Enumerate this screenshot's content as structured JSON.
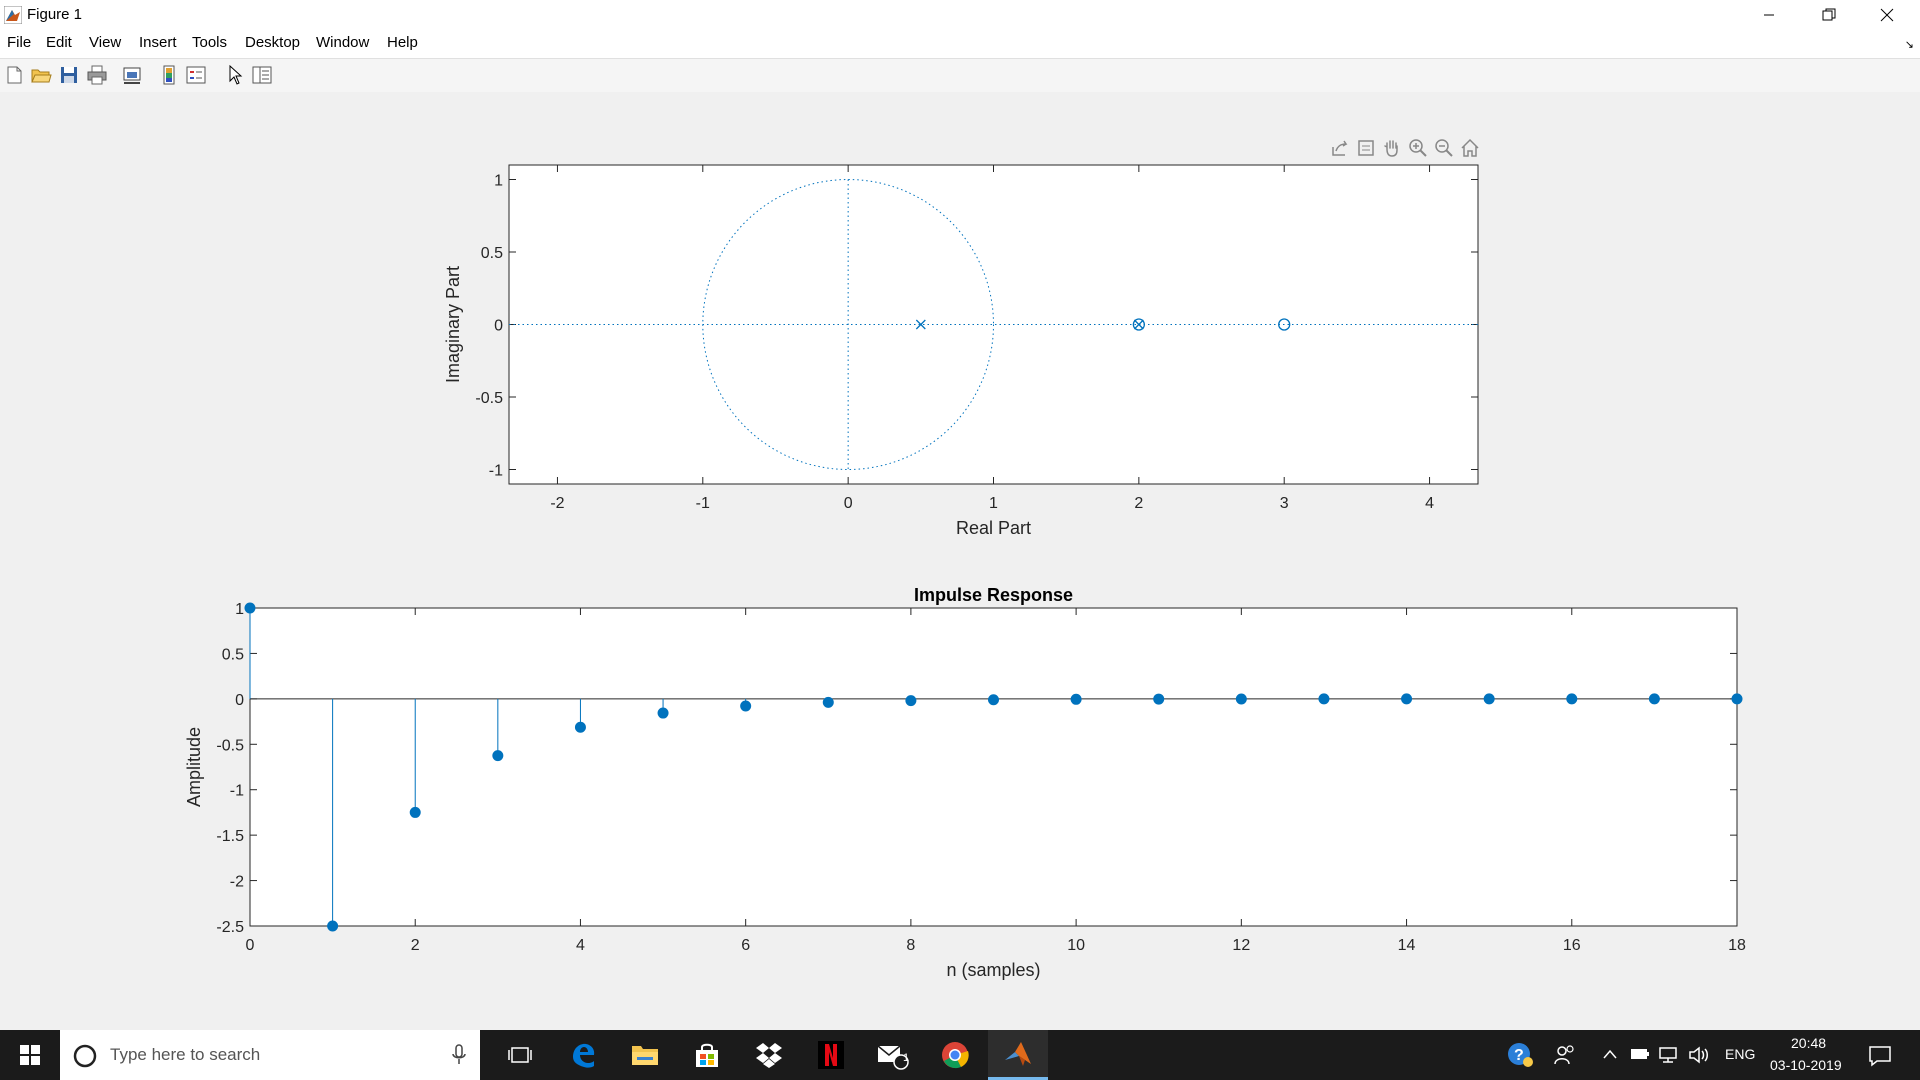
{
  "window": {
    "title": "Figure 1",
    "icon": "matlab-icon",
    "controls": [
      "minimize-icon",
      "restore-icon",
      "close-icon"
    ]
  },
  "menu": {
    "file": "File",
    "edit": "Edit",
    "view": "View",
    "insert": "Insert",
    "tools": "Tools",
    "desktop": "Desktop",
    "window": "Window",
    "help": "Help"
  },
  "toolbar": {
    "buttons": [
      "new-figure-icon",
      "open-file-icon",
      "save-icon",
      "print-icon",
      "link-plot-icon",
      "colorbar-icon",
      "legend-icon",
      "edit-plot-icon",
      "property-inspector-icon"
    ]
  },
  "axes_toolbar": {
    "buttons": [
      "export-icon",
      "brush-icon",
      "pan-icon",
      "zoom-in-icon",
      "zoom-out-icon",
      "home-icon"
    ]
  },
  "colors": {
    "series": "#0072bd",
    "axes_background": "#ffffff",
    "figure_background": "#f0f0f0",
    "taskbar": "#1b1b1b"
  },
  "chart_data": [
    {
      "type": "scatter",
      "title": "",
      "xlabel": "Real Part",
      "ylabel": "Imaginary Part",
      "xlim": [
        -2.3333,
        4.3333
      ],
      "ylim": [
        -1.1,
        1.1
      ],
      "xticks": [
        -2,
        -1,
        0,
        1,
        2,
        3,
        4
      ],
      "yticks": [
        -1,
        -0.5,
        0,
        0.5,
        1
      ],
      "xtick_labels": [
        "-2",
        "-1",
        "0",
        "1",
        "2",
        "3",
        "4"
      ],
      "ytick_labels": [
        "-1",
        "-0.5",
        "0",
        "0.5",
        "1"
      ],
      "unit_circle": true,
      "zeros": [
        {
          "re": 2,
          "im": 0
        },
        {
          "re": 3,
          "im": 0
        }
      ],
      "poles": [
        {
          "re": 0.5,
          "im": 0
        },
        {
          "re": 2,
          "im": 0
        }
      ],
      "grid": false
    },
    {
      "type": "stem",
      "title": "Impulse Response",
      "xlabel": "n (samples)",
      "ylabel": "Amplitude",
      "xlim": [
        0,
        18
      ],
      "ylim": [
        -2.5,
        1
      ],
      "xticks": [
        0,
        2,
        4,
        6,
        8,
        10,
        12,
        14,
        16,
        18
      ],
      "yticks": [
        -2.5,
        -2,
        -1.5,
        -1,
        -0.5,
        0,
        0.5,
        1
      ],
      "xtick_labels": [
        "0",
        "2",
        "4",
        "6",
        "8",
        "10",
        "12",
        "14",
        "16",
        "18"
      ],
      "ytick_labels": [
        "-2.5",
        "-2",
        "-1.5",
        "-1",
        "-0.5",
        "0",
        "0.5",
        "1"
      ],
      "x": [
        0,
        1,
        2,
        3,
        4,
        5,
        6,
        7,
        8,
        9,
        10,
        11,
        12,
        13,
        14,
        15,
        16,
        17,
        18
      ],
      "values": [
        1,
        -2.5,
        -1.25,
        -0.625,
        -0.3125,
        -0.1563,
        -0.0781,
        -0.0391,
        -0.0195,
        -0.0098,
        -0.0049,
        -0.0024,
        -0.0012,
        -0.0006,
        -0.0003,
        -0.0002,
        -0.0001,
        0,
        0
      ],
      "grid": false
    }
  ],
  "taskbar": {
    "search_placeholder": "Type here to search",
    "apps": [
      "task-view-icon",
      "edge-icon",
      "file-explorer-icon",
      "store-icon",
      "dropbox-icon",
      "netflix-icon",
      "mail-icon",
      "chrome-icon",
      "matlab-icon"
    ],
    "mail_badge": "1",
    "language": "ENG",
    "time": "20:48",
    "date": "03-10-2019"
  }
}
